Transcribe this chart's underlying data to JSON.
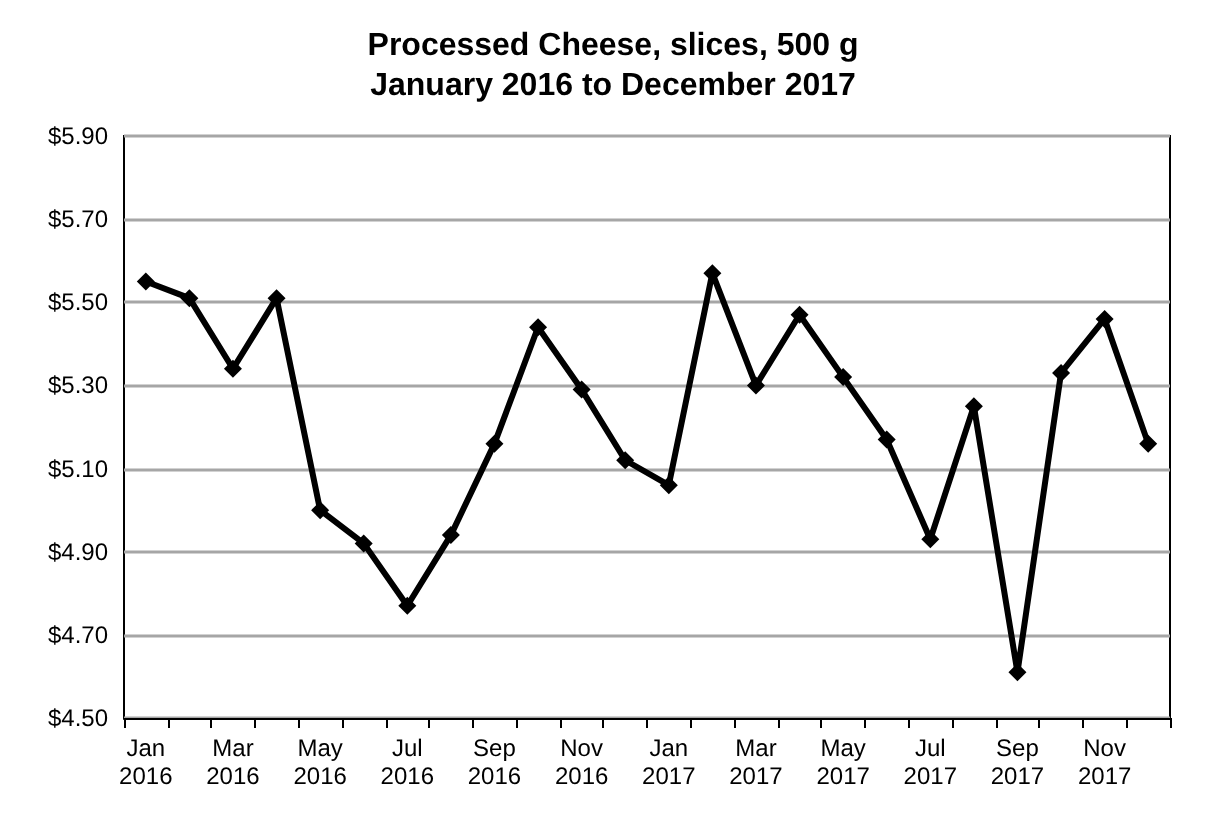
{
  "chart_data": {
    "type": "line",
    "title": "Processed Cheese, slices, 500 g\nJanuary 2016 to December 2017",
    "categories": [
      "Jan\n2016",
      null,
      "Mar\n2016",
      null,
      "May\n2016",
      null,
      "Jul\n2016",
      null,
      "Sep\n2016",
      null,
      "Nov\n2016",
      null,
      "Jan\n2017",
      null,
      "Mar\n2017",
      null,
      "May\n2017",
      null,
      "Jul\n2017",
      null,
      "Sep\n2017",
      null,
      "Nov\n2017",
      null
    ],
    "series": [
      {
        "color": "#000000",
        "values": [
          5.55,
          5.51,
          5.34,
          5.51,
          5.0,
          4.92,
          4.77,
          4.94,
          5.16,
          5.44,
          5.29,
          5.12,
          5.06,
          5.57,
          5.3,
          5.47,
          5.32,
          5.17,
          4.93,
          5.25,
          4.61,
          5.33,
          5.46,
          5.16
        ]
      }
    ],
    "ylim": [
      4.5,
      5.9
    ],
    "yticks": [
      {
        "value": 4.5,
        "label": "$4.50"
      },
      {
        "value": 4.7,
        "label": "$4.70"
      },
      {
        "value": 4.9,
        "label": "$4.90"
      },
      {
        "value": 5.1,
        "label": "$5.10"
      },
      {
        "value": 5.3,
        "label": "$5.30"
      },
      {
        "value": 5.5,
        "label": "$5.50"
      },
      {
        "value": 5.7,
        "label": "$5.70"
      },
      {
        "value": 5.9,
        "label": "$5.90"
      }
    ],
    "grid": "y",
    "marker": "diamond",
    "line_style": "solid"
  }
}
